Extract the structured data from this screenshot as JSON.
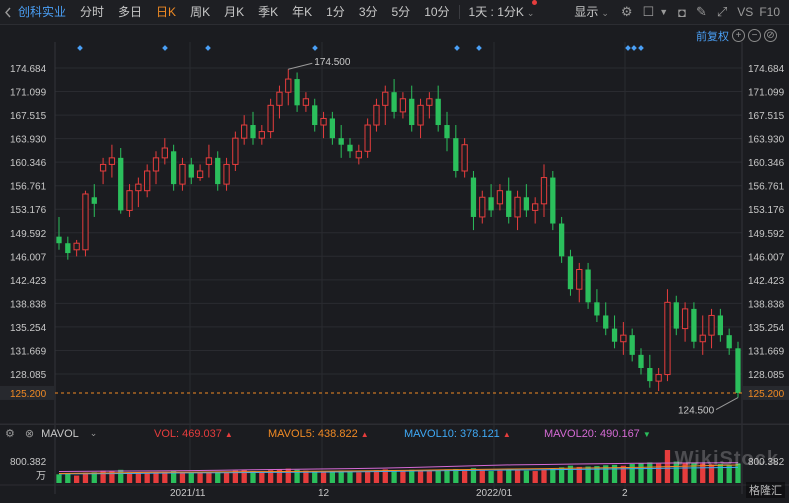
{
  "toolbar": {
    "stock_name": "创科实业",
    "periods": [
      "分时",
      "多日",
      "日K",
      "周K",
      "月K",
      "季K",
      "年K",
      "1分",
      "3分",
      "5分",
      "10分"
    ],
    "active_period": "日K",
    "period_dropdown": "1天 : 1分K",
    "display_label": "显示",
    "vs_label": "VS",
    "f10_label": "F10"
  },
  "price_axis": {
    "left_labels": [
      "174.684",
      "171.099",
      "167.515",
      "163.930",
      "160.346",
      "156.761",
      "153.176",
      "149.592",
      "146.007",
      "142.423",
      "138.838",
      "135.254",
      "131.669",
      "128.085"
    ],
    "right_labels": [
      "174.684",
      "171.099",
      "167.515",
      "163.930",
      "160.346",
      "156.761",
      "153.176",
      "149.592",
      "146.007",
      "142.423",
      "138.838",
      "135.254",
      "131.669",
      "128.085"
    ],
    "current_price": "125.200",
    "high_marker": "174.500",
    "low_marker": "124.500"
  },
  "adjust_label": "前复权",
  "corner_controls": [
    "+",
    "−",
    "⊘"
  ],
  "volume": {
    "indicator_name": "MAVOL",
    "vol": "VOL: 469.037",
    "mavol5": "MAVOL5: 438.822",
    "mavol10": "MAVOL10: 378.121",
    "mavol20": "MAVOL20: 490.167",
    "axis_top": "800.382",
    "axis_unit": "万"
  },
  "time_axis": [
    "2021/11",
    "12",
    "2022/01",
    "2"
  ],
  "colors": {
    "up": "#e63d3d",
    "down": "#2bbf5c",
    "accent": "#f08a24",
    "link": "#4a9ff5",
    "mavol5": "#f08a24",
    "mavol10": "#3fa9f5",
    "mavol20": "#d46ad4"
  },
  "watermark": "WikiStock",
  "logo": "格隆汇",
  "chart_data": {
    "type": "candlestick",
    "ylim": [
      124.5,
      175.5
    ],
    "candles": [
      [
        149,
        152,
        147,
        148
      ],
      [
        148,
        149,
        145.5,
        146.5
      ],
      [
        147,
        148.5,
        146,
        148
      ],
      [
        147,
        156,
        146,
        155.5
      ],
      [
        155,
        157,
        152,
        154
      ],
      [
        159,
        161,
        157,
        160
      ],
      [
        160,
        163,
        158,
        161
      ],
      [
        161,
        162.5,
        152.5,
        153
      ],
      [
        153,
        157,
        152,
        156
      ],
      [
        156,
        158,
        153.5,
        157
      ],
      [
        156,
        160,
        155,
        159
      ],
      [
        159,
        162,
        157,
        161
      ],
      [
        161,
        164,
        160,
        162.5
      ],
      [
        162,
        163,
        156,
        157
      ],
      [
        157,
        161,
        156,
        160
      ],
      [
        160,
        161,
        157,
        158
      ],
      [
        158,
        160,
        157.5,
        159
      ],
      [
        160,
        163,
        158,
        161
      ],
      [
        161,
        162,
        156,
        157
      ],
      [
        157,
        161,
        156,
        160
      ],
      [
        160,
        165,
        159,
        164
      ],
      [
        164,
        167.5,
        163,
        166
      ],
      [
        166,
        168,
        163,
        164
      ],
      [
        164,
        166,
        163,
        165
      ],
      [
        165,
        170,
        164,
        169
      ],
      [
        169,
        172,
        167,
        171
      ],
      [
        171,
        174.5,
        169,
        173
      ],
      [
        173,
        174,
        168,
        169
      ],
      [
        169,
        171,
        168,
        170
      ],
      [
        169,
        170,
        165,
        166
      ],
      [
        166,
        168,
        164,
        167
      ],
      [
        167,
        168,
        163,
        164
      ],
      [
        164,
        166,
        161,
        163
      ],
      [
        163,
        164,
        161,
        162
      ],
      [
        161,
        163,
        160,
        162
      ],
      [
        162,
        167,
        161,
        166
      ],
      [
        166,
        170,
        165,
        169
      ],
      [
        169,
        172,
        166,
        171
      ],
      [
        171,
        173,
        167,
        168
      ],
      [
        168,
        171,
        167,
        170
      ],
      [
        170,
        172,
        165,
        166
      ],
      [
        166,
        170,
        164,
        169
      ],
      [
        169,
        171,
        167,
        170
      ],
      [
        170,
        172,
        165,
        166
      ],
      [
        166,
        168,
        162,
        164
      ],
      [
        164,
        166,
        158,
        159
      ],
      [
        159,
        164,
        158,
        163
      ],
      [
        158,
        159,
        150,
        152
      ],
      [
        152,
        156,
        151,
        155
      ],
      [
        155,
        157,
        152,
        153
      ],
      [
        154,
        157,
        153,
        156
      ],
      [
        156,
        158,
        151,
        152
      ],
      [
        152,
        156,
        150,
        155
      ],
      [
        155,
        157,
        152,
        153
      ],
      [
        153,
        155,
        151,
        154
      ],
      [
        154,
        160,
        152,
        158
      ],
      [
        158,
        159,
        150,
        151
      ],
      [
        151,
        152,
        145,
        146
      ],
      [
        146,
        147,
        140,
        141
      ],
      [
        141,
        145,
        139,
        144
      ],
      [
        144,
        145,
        138,
        139
      ],
      [
        139,
        141,
        136,
        137
      ],
      [
        137,
        139,
        134,
        135
      ],
      [
        135,
        137,
        132,
        133
      ],
      [
        133,
        136,
        131,
        134
      ],
      [
        134,
        135,
        130,
        131
      ],
      [
        131,
        132,
        128,
        129
      ],
      [
        129,
        131,
        126,
        127
      ],
      [
        127,
        129,
        125.5,
        128
      ],
      [
        128,
        141,
        127,
        139
      ],
      [
        139,
        140,
        134,
        135
      ],
      [
        135,
        139,
        133,
        138
      ],
      [
        138,
        139,
        132,
        133
      ],
      [
        133,
        137,
        131,
        134
      ],
      [
        134,
        138,
        132,
        137
      ],
      [
        137,
        138,
        133,
        134
      ],
      [
        134,
        135,
        131,
        132
      ],
      [
        132,
        133,
        124.5,
        125.2
      ]
    ],
    "volume": {
      "values": [
        210,
        230,
        180,
        250,
        260,
        300,
        280,
        320,
        240,
        260,
        230,
        250,
        270,
        300,
        260,
        240,
        250,
        270,
        280,
        260,
        300,
        320,
        290,
        280,
        310,
        330,
        350,
        320,
        300,
        280,
        270,
        290,
        300,
        280,
        260,
        290,
        310,
        330,
        300,
        280,
        320,
        300,
        290,
        310,
        330,
        340,
        300,
        360,
        310,
        290,
        300,
        320,
        310,
        300,
        290,
        330,
        350,
        380,
        420,
        390,
        400,
        410,
        430,
        440,
        420,
        460,
        480,
        500,
        470,
        800,
        520,
        480,
        500,
        470,
        450,
        460,
        440,
        469
      ],
      "mavol5": [
        230,
        240,
        250,
        260,
        265,
        270,
        275,
        280,
        285,
        290,
        300,
        310,
        320,
        330,
        340,
        350,
        360,
        370,
        380,
        400,
        420,
        438
      ],
      "mavol10": [
        220,
        225,
        230,
        240,
        245,
        250,
        255,
        260,
        265,
        270,
        280,
        290,
        300,
        310,
        315,
        320,
        330,
        340,
        350,
        360,
        370,
        378
      ],
      "mavol20": [
        280,
        285,
        290,
        295,
        300,
        310,
        320,
        330,
        340,
        350,
        360,
        380,
        400,
        420,
        440,
        450,
        460,
        470,
        480,
        485,
        488,
        490
      ]
    }
  }
}
